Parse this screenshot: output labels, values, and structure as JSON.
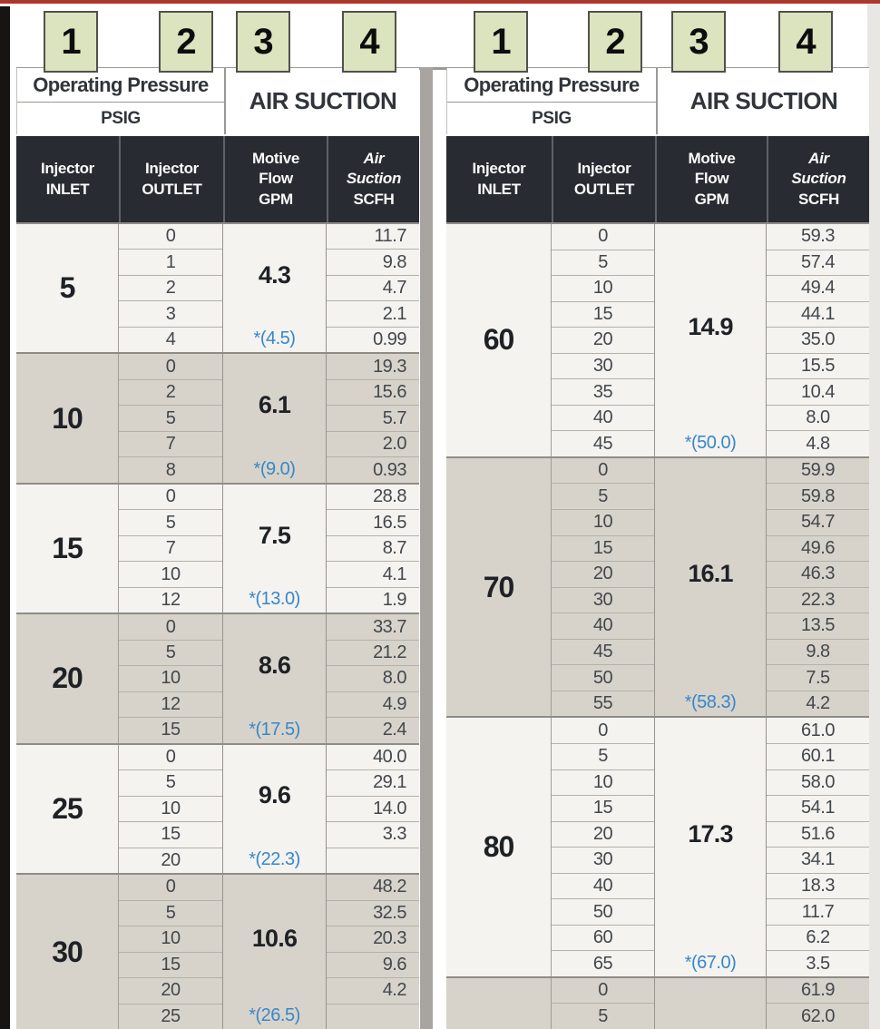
{
  "callouts": [
    "1",
    "2",
    "3",
    "4"
  ],
  "header": {
    "operating_pressure": "Operating Pressure",
    "psig": "PSIG",
    "air_suction": "AIR SUCTION",
    "col_inlet": {
      "l1": "Injector",
      "l2": "INLET"
    },
    "col_outlet": {
      "l1": "Injector",
      "l2": "OUTLET"
    },
    "col_motive": {
      "l1": "Motive",
      "l2": "Flow",
      "l3": "GPM"
    },
    "col_suction": {
      "l1": "Air",
      "l2": "Suction",
      "l3": "SCFH"
    }
  },
  "colors": {
    "top_line_red": "#ad372c",
    "callout_badge_bg": "#dce3bf",
    "dark_header_bg": "#282b32",
    "group_light_bg": "#f4f3f0",
    "group_tan_bg": "#d7d3ca",
    "starred_value_blue": "#3787c9"
  },
  "tables": [
    {
      "side": "left",
      "groups": [
        {
          "inlet": "5",
          "motive": "4.3",
          "motive_max": "*(4.5)",
          "rows": [
            [
              "0",
              "11.7"
            ],
            [
              "1",
              "9.8"
            ],
            [
              "2",
              "4.7"
            ],
            [
              "3",
              "2.1"
            ],
            [
              "4",
              "0.99"
            ]
          ]
        },
        {
          "inlet": "10",
          "motive": "6.1",
          "motive_max": "*(9.0)",
          "rows": [
            [
              "0",
              "19.3"
            ],
            [
              "2",
              "15.6"
            ],
            [
              "5",
              "5.7"
            ],
            [
              "7",
              "2.0"
            ],
            [
              "8",
              "0.93"
            ]
          ]
        },
        {
          "inlet": "15",
          "motive": "7.5",
          "motive_max": "*(13.0)",
          "rows": [
            [
              "0",
              "28.8"
            ],
            [
              "5",
              "16.5"
            ],
            [
              "7",
              "8.7"
            ],
            [
              "10",
              "4.1"
            ],
            [
              "12",
              "1.9"
            ]
          ]
        },
        {
          "inlet": "20",
          "motive": "8.6",
          "motive_max": "*(17.5)",
          "rows": [
            [
              "0",
              "33.7"
            ],
            [
              "5",
              "21.2"
            ],
            [
              "10",
              "8.0"
            ],
            [
              "12",
              "4.9"
            ],
            [
              "15",
              "2.4"
            ]
          ]
        },
        {
          "inlet": "25",
          "motive": "9.6",
          "motive_max": "*(22.3)",
          "rows": [
            [
              "0",
              "40.0"
            ],
            [
              "5",
              "29.1"
            ],
            [
              "10",
              "14.0"
            ],
            [
              "15",
              "3.3"
            ],
            [
              "20",
              ""
            ]
          ]
        },
        {
          "inlet": "30",
          "motive": "10.6",
          "motive_max": "*(26.5)",
          "rows": [
            [
              "0",
              "48.2"
            ],
            [
              "5",
              "32.5"
            ],
            [
              "10",
              "20.3"
            ],
            [
              "15",
              "9.6"
            ],
            [
              "20",
              "4.2"
            ],
            [
              "25",
              ""
            ]
          ]
        }
      ]
    },
    {
      "side": "right",
      "groups": [
        {
          "inlet": "60",
          "motive": "14.9",
          "motive_max": "*(50.0)",
          "rows": [
            [
              "0",
              "59.3"
            ],
            [
              "5",
              "57.4"
            ],
            [
              "10",
              "49.4"
            ],
            [
              "15",
              "44.1"
            ],
            [
              "20",
              "35.0"
            ],
            [
              "30",
              "15.5"
            ],
            [
              "35",
              "10.4"
            ],
            [
              "40",
              "8.0"
            ],
            [
              "45",
              "4.8"
            ]
          ]
        },
        {
          "inlet": "70",
          "motive": "16.1",
          "motive_max": "*(58.3)",
          "rows": [
            [
              "0",
              "59.9"
            ],
            [
              "5",
              "59.8"
            ],
            [
              "10",
              "54.7"
            ],
            [
              "15",
              "49.6"
            ],
            [
              "20",
              "46.3"
            ],
            [
              "30",
              "22.3"
            ],
            [
              "40",
              "13.5"
            ],
            [
              "45",
              "9.8"
            ],
            [
              "50",
              "7.5"
            ],
            [
              "55",
              "4.2"
            ]
          ]
        },
        {
          "inlet": "80",
          "motive": "17.3",
          "motive_max": "*(67.0)",
          "rows": [
            [
              "0",
              "61.0"
            ],
            [
              "5",
              "60.1"
            ],
            [
              "10",
              "58.0"
            ],
            [
              "15",
              "54.1"
            ],
            [
              "20",
              "51.6"
            ],
            [
              "30",
              "34.1"
            ],
            [
              "40",
              "18.3"
            ],
            [
              "50",
              "11.7"
            ],
            [
              "60",
              "6.2"
            ],
            [
              "65",
              "3.5"
            ]
          ]
        },
        {
          "inlet": "",
          "motive": "",
          "motive_max": "",
          "rows": [
            [
              "0",
              "61.9"
            ],
            [
              "5",
              "62.0"
            ]
          ]
        }
      ]
    }
  ]
}
